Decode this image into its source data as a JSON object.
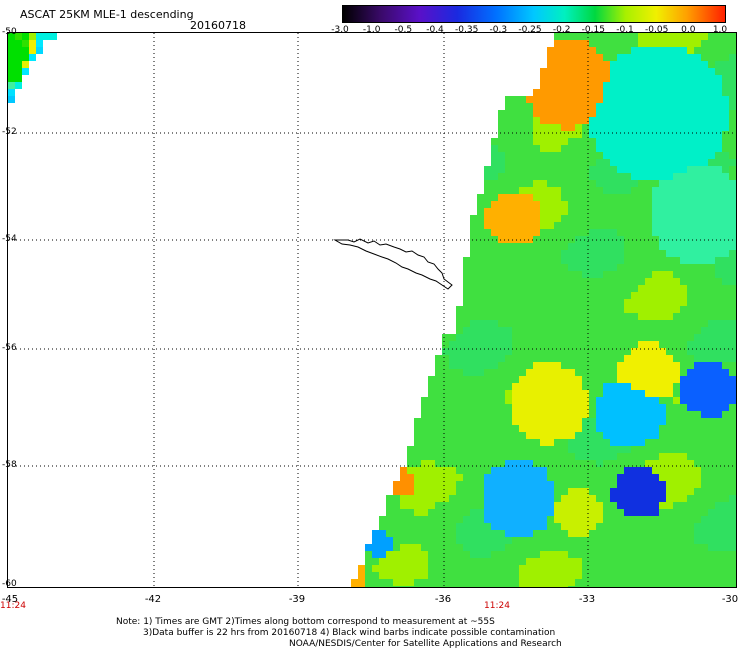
{
  "header": {
    "title": "ASCAT 25KM MLE-1 descending",
    "date": "20160718"
  },
  "colorbar": {
    "labels": [
      "-3.0",
      "-1.0",
      "-0.5",
      "-0.4",
      "-0.35",
      "-0.3",
      "-0.25",
      "-0.2",
      "-0.15",
      "-0.1",
      "-0.05",
      "0.0",
      "1.0"
    ]
  },
  "axes": {
    "y_labels": [
      "-50",
      "-52",
      "-54",
      "-56",
      "-58",
      "-60"
    ],
    "x_labels": [
      "-45",
      "-42",
      "-39",
      "-36",
      "-33",
      "-30"
    ],
    "time_left": "11:24",
    "time_mid": "11:24"
  },
  "notes": {
    "line1": "Note: 1) Times are GMT 2)Times along bottom correspond to measurement at ~55S",
    "line2": "3)Data buffer is 22 hrs from 20160718 4) Black wind barbs indicate possible contamination",
    "line3": "NOAA/NESDIS/Center for Satellite Applications and Research"
  }
}
